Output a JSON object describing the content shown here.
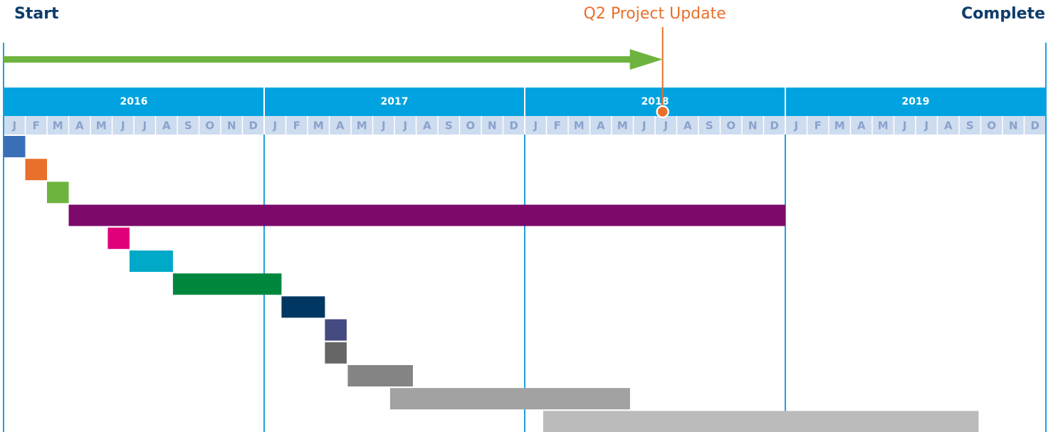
{
  "chart_data": {
    "type": "gantt",
    "start_label": "Start",
    "end_label": "Complete",
    "milestone": {
      "label": "Q2 Project Update",
      "value": 30.35,
      "color": "#e8702a"
    },
    "progress_color": "#6db33f",
    "xlim": [
      0,
      48
    ],
    "years": [
      {
        "value": 0,
        "label": "2016"
      },
      {
        "value": 12,
        "label": "2017"
      },
      {
        "value": 24,
        "label": "2018"
      },
      {
        "value": 36,
        "label": "2019"
      }
    ],
    "months": [
      "J",
      "F",
      "M",
      "A",
      "M",
      "J",
      "J",
      "A",
      "S",
      "O",
      "N",
      "D"
    ],
    "tasks": [
      {
        "start": 0,
        "end": 1,
        "color": "#3a6fb8"
      },
      {
        "start": 1,
        "end": 2,
        "color": "#e8702a"
      },
      {
        "start": 2,
        "end": 3,
        "color": "#6db33f"
      },
      {
        "start": 3,
        "end": 36,
        "color": "#7b0a6a"
      },
      {
        "start": 4.8,
        "end": 5.8,
        "color": "#e0007a"
      },
      {
        "start": 5.8,
        "end": 7.8,
        "color": "#00a9c8"
      },
      {
        "start": 7.8,
        "end": 12.8,
        "color": "#00873e"
      },
      {
        "start": 12.8,
        "end": 14.8,
        "color": "#003762"
      },
      {
        "start": 14.8,
        "end": 15.8,
        "color": "#454a80"
      },
      {
        "start": 14.8,
        "end": 15.8,
        "color": "#666666"
      },
      {
        "start": 15.85,
        "end": 18.85,
        "color": "#848484"
      },
      {
        "start": 17.8,
        "end": 28.85,
        "color": "#a2a2a2"
      },
      {
        "start": 24.85,
        "end": 44.9,
        "color": "#bbbbbc"
      }
    ]
  }
}
